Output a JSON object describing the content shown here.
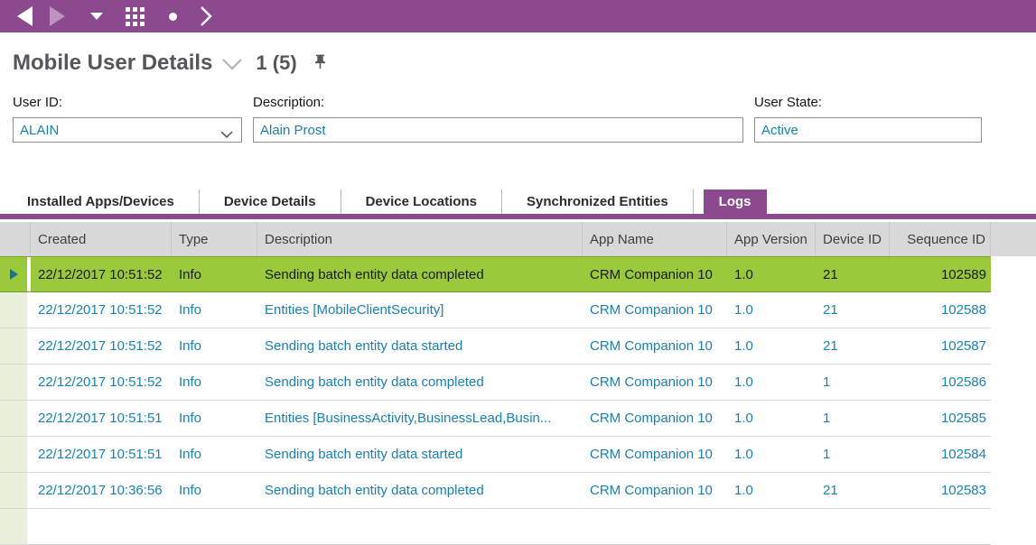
{
  "toolbar": {
    "icons": [
      "back",
      "forward-disabled",
      "dropdown-caret",
      "app-grid",
      "record-dot",
      "chevron-right"
    ]
  },
  "header": {
    "title": "Mobile User Details",
    "record_position": "1 (5)"
  },
  "form": {
    "user_id": {
      "label": "User ID:",
      "value": "ALAIN"
    },
    "description": {
      "label": "Description:",
      "value": "Alain Prost"
    },
    "user_state": {
      "label": "User State:",
      "value": "Active"
    }
  },
  "tabs": {
    "items": [
      {
        "label": "Installed Apps/Devices",
        "active": false
      },
      {
        "label": "Device Details",
        "active": false
      },
      {
        "label": "Device Locations",
        "active": false
      },
      {
        "label": "Synchronized Entities",
        "active": false
      },
      {
        "label": "Logs",
        "active": true
      }
    ]
  },
  "table": {
    "columns": [
      "Created",
      "Type",
      "Description",
      "App Name",
      "App Version",
      "Device ID",
      "Sequence ID"
    ],
    "rows": [
      {
        "created": "22/12/2017 10:51:52",
        "type": "Info",
        "description": "Sending batch entity data completed",
        "app_name": "CRM Companion 10",
        "app_version": "1.0",
        "device_id": "21",
        "sequence_id": "102589",
        "selected": true
      },
      {
        "created": "22/12/2017 10:51:52",
        "type": "Info",
        "description": "Entities [MobileClientSecurity]",
        "app_name": "CRM Companion 10",
        "app_version": "1.0",
        "device_id": "21",
        "sequence_id": "102588",
        "selected": false
      },
      {
        "created": "22/12/2017 10:51:52",
        "type": "Info",
        "description": "Sending batch entity data started",
        "app_name": "CRM Companion 10",
        "app_version": "1.0",
        "device_id": "21",
        "sequence_id": "102587",
        "selected": false
      },
      {
        "created": "22/12/2017 10:51:52",
        "type": "Info",
        "description": "Sending batch entity data completed",
        "app_name": "CRM Companion 10",
        "app_version": "1.0",
        "device_id": "1",
        "sequence_id": "102586",
        "selected": false
      },
      {
        "created": "22/12/2017 10:51:51",
        "type": "Info",
        "description": "Entities [BusinessActivity,BusinessLead,Busin...",
        "app_name": "CRM Companion 10",
        "app_version": "1.0",
        "device_id": "1",
        "sequence_id": "102585",
        "selected": false
      },
      {
        "created": "22/12/2017 10:51:51",
        "type": "Info",
        "description": "Sending batch entity data started",
        "app_name": "CRM Companion 10",
        "app_version": "1.0",
        "device_id": "1",
        "sequence_id": "102584",
        "selected": false
      },
      {
        "created": "22/12/2017 10:36:56",
        "type": "Info",
        "description": "Sending batch entity data completed",
        "app_name": "CRM Companion 10",
        "app_version": "1.0",
        "device_id": "21",
        "sequence_id": "102583",
        "selected": false
      }
    ]
  },
  "colors": {
    "accent_purple": "#8a4a8d",
    "selected_row_green": "#9bc93c",
    "row_gutter_green": "#e8f0da",
    "link_blue": "#1b7fb0",
    "table_header_gray": "#d8d8d8"
  }
}
